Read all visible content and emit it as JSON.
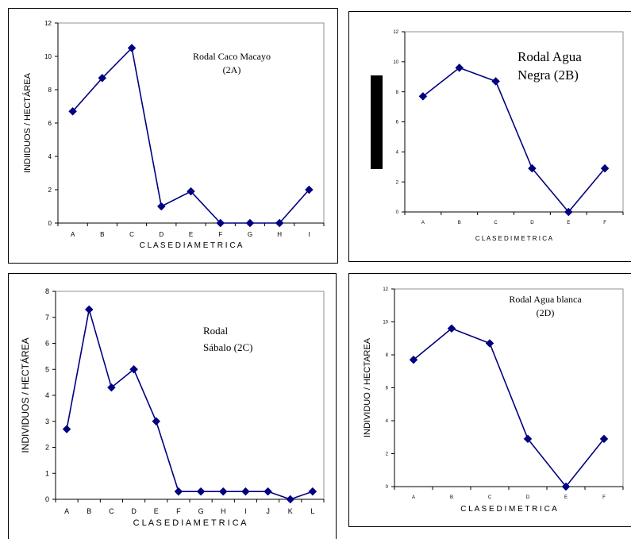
{
  "chart_data": [
    {
      "type": "line",
      "annotation": [
        "Rodal Caco Macayo",
        "(2A)"
      ],
      "xlabel": "C L A S E   D I A M E T R I C A",
      "ylabel": "INDIIDUOS / HECTÁREA",
      "categories": [
        "A",
        "B",
        "C",
        "D",
        "E",
        "F",
        "G",
        "H",
        "I"
      ],
      "values": [
        6.7,
        8.7,
        10.5,
        1.0,
        1.9,
        0,
        0,
        0,
        2.0
      ],
      "ylim": [
        0,
        12
      ],
      "yticks": [
        "0",
        "2",
        "4",
        "6",
        "8",
        "10",
        "12"
      ],
      "color": "#000080"
    },
    {
      "type": "line",
      "annotation": [
        "Rodal Agua",
        "Negra (2B)"
      ],
      "xlabel": "C L A S E D I M E T R I C A",
      "ylabel": "",
      "categories": [
        "A",
        "B",
        "C",
        "D",
        "E",
        "F"
      ],
      "values": [
        7.7,
        9.6,
        8.7,
        2.9,
        0,
        2.9
      ],
      "ylim": [
        0,
        12
      ],
      "yticks": [
        "0",
        "2",
        "4",
        "6",
        "8",
        "10",
        "12"
      ],
      "color": "#000080"
    },
    {
      "type": "line",
      "annotation": [
        "Rodal",
        "Sábalo (2C)"
      ],
      "xlabel": "C L A S E   D I A M E T R I C A",
      "ylabel": "INDIVIDUOS / HECTÁREA",
      "categories": [
        "A",
        "B",
        "C",
        "D",
        "E",
        "F",
        "G",
        "H",
        "I",
        "J",
        "K",
        "L"
      ],
      "values": [
        2.7,
        7.3,
        4.3,
        5.0,
        3.0,
        0.3,
        0.3,
        0.3,
        0.3,
        0.3,
        0,
        0.3
      ],
      "ylim": [
        0,
        8
      ],
      "yticks": [
        "0",
        "1",
        "2",
        "3",
        "4",
        "5",
        "6",
        "7",
        "8"
      ],
      "color": "#000080"
    },
    {
      "type": "line",
      "annotation": [
        "Rodal Agua blanca",
        "(2D)"
      ],
      "xlabel": "C L A S E   D I M E T R I C A",
      "ylabel": "INDIVIDUO / HECTAREA",
      "categories": [
        "A",
        "B",
        "C",
        "D",
        "E",
        "F"
      ],
      "values": [
        7.7,
        9.6,
        8.7,
        2.9,
        0,
        2.9
      ],
      "ylim": [
        0,
        12
      ],
      "yticks": [
        "0",
        "2",
        "4",
        "6",
        "8",
        "10",
        "12"
      ],
      "color": "#000080"
    }
  ]
}
